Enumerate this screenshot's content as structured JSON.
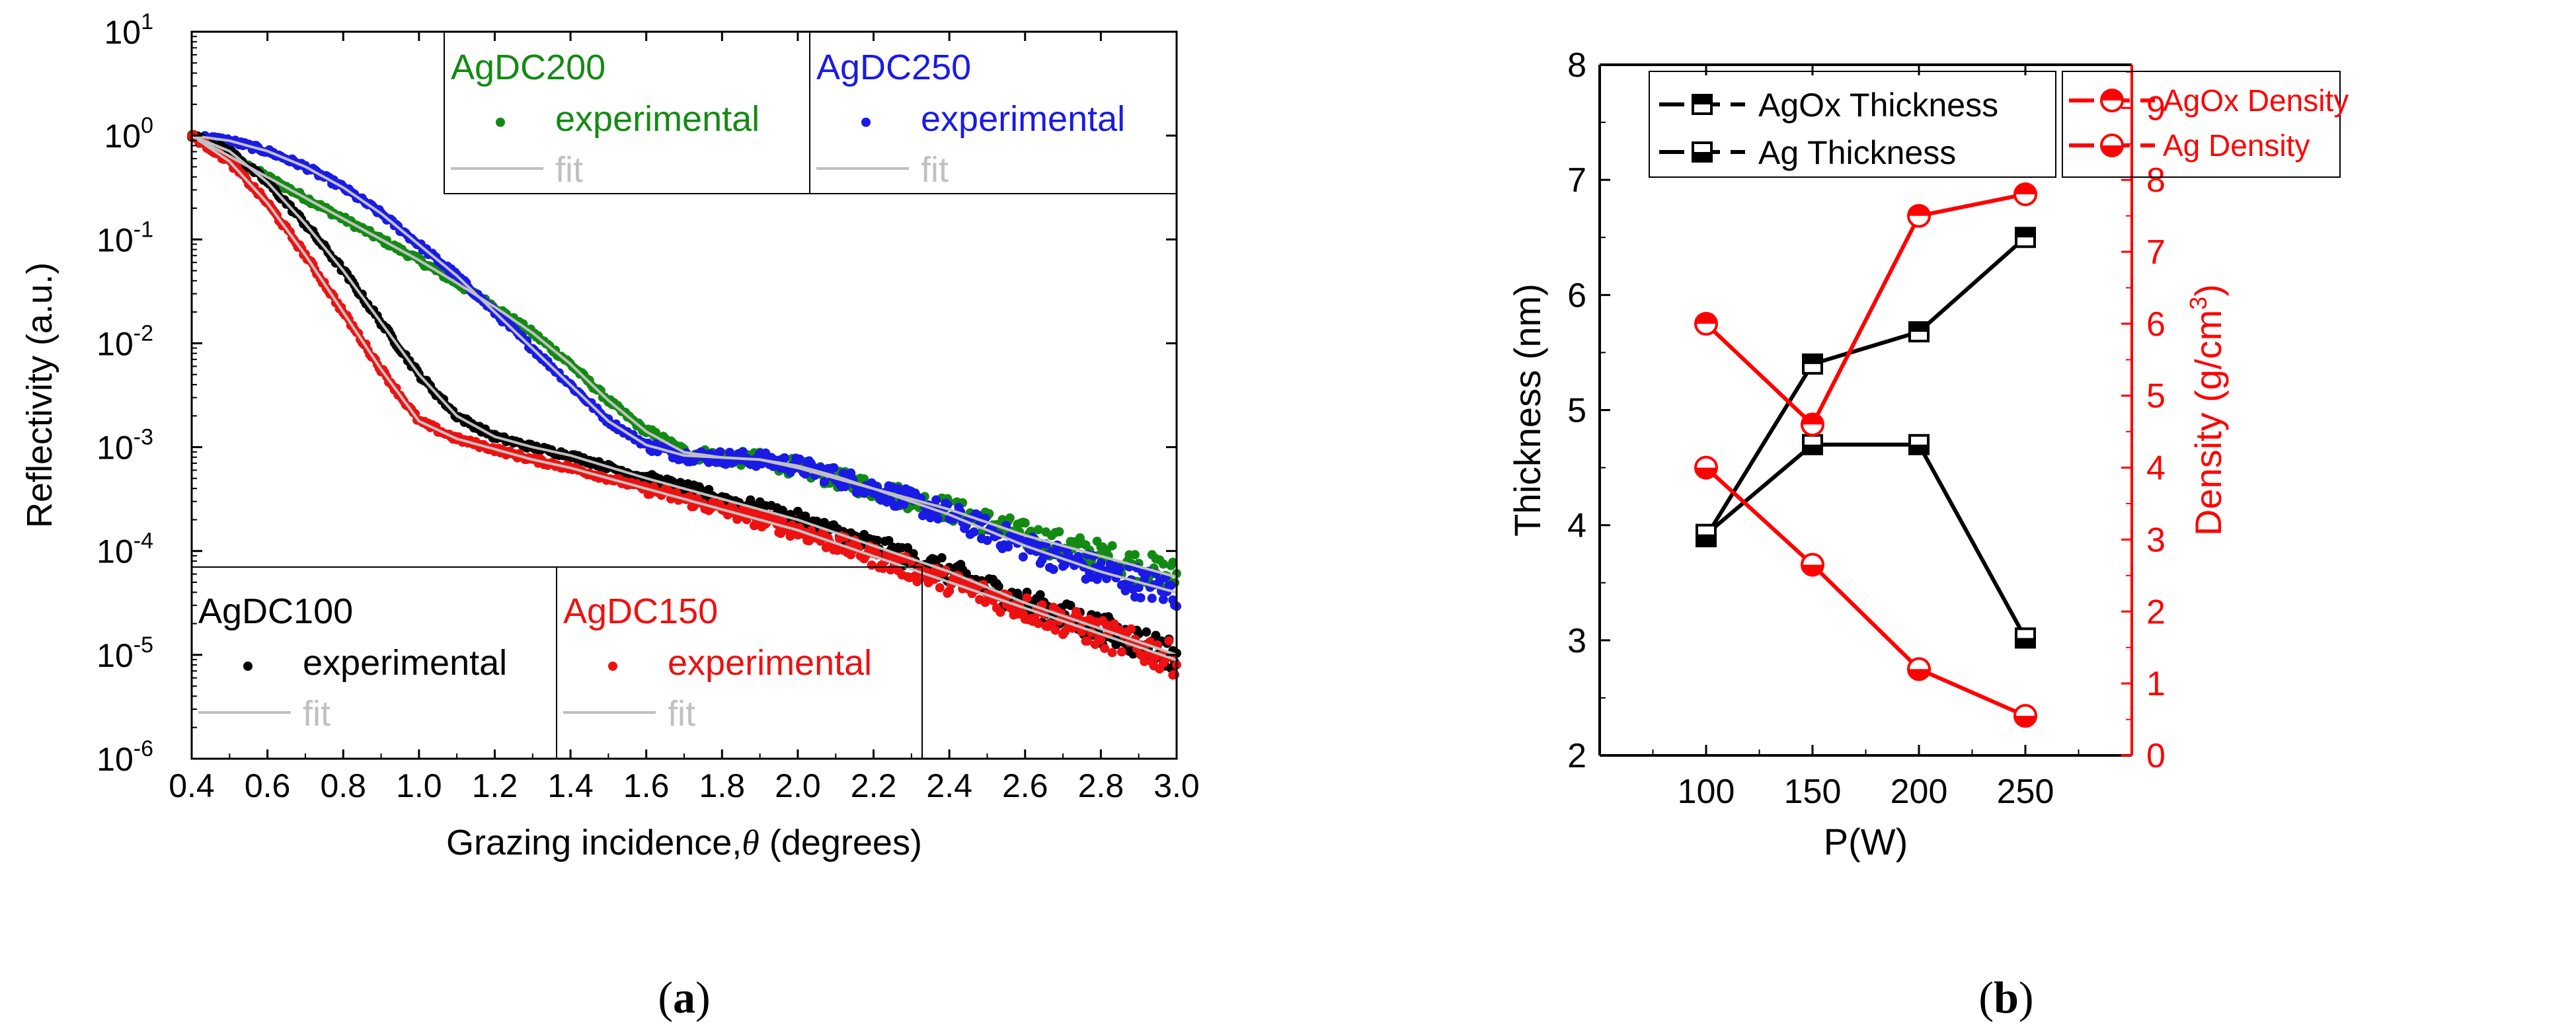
{
  "chart_data": [
    {
      "type": "scatter",
      "panel_label": "a",
      "xlabel_parts": [
        "Grazing incidence,",
        "θ",
        " (degrees)"
      ],
      "ylabel": "Reflectivity (a.u.)",
      "xlim": [
        0.4,
        3.0
      ],
      "ylim_log10": [
        -6,
        1
      ],
      "yscale": "log",
      "grid": false,
      "x_ticks": [
        "0.4",
        "0.6",
        "0.8",
        "1.0",
        "1.2",
        "1.4",
        "1.6",
        "1.8",
        "2.0",
        "2.2",
        "2.4",
        "2.6",
        "2.8",
        "3.0"
      ],
      "y_ticks": [
        {
          "base": "10",
          "exp": "1"
        },
        {
          "base": "10",
          "exp": "0"
        },
        {
          "base": "10",
          "exp": "-1"
        },
        {
          "base": "10",
          "exp": "-2"
        },
        {
          "base": "10",
          "exp": "-3"
        },
        {
          "base": "10",
          "exp": "-4"
        },
        {
          "base": "10",
          "exp": "-5"
        },
        {
          "base": "10",
          "exp": "-6"
        }
      ],
      "legends": [
        {
          "title": "AgDC200",
          "experimental": "experimental",
          "fit": "fit",
          "color": "#138a13",
          "placement": "top-center"
        },
        {
          "title": "AgDC250",
          "experimental": "experimental",
          "fit": "fit",
          "color": "#1a1ae6",
          "placement": "top-right"
        },
        {
          "title": "AgDC100",
          "experimental": "experimental",
          "fit": "fit",
          "color": "#000000",
          "placement": "bottom-left"
        },
        {
          "title": "AgDC150",
          "experimental": "experimental",
          "fit": "fit",
          "color": "#ee1111",
          "placement": "bottom-center"
        }
      ],
      "fit_color": "#c0c0c0",
      "series": [
        {
          "name": "AgDC100",
          "color": "#000000",
          "x": [
            0.4,
            0.5,
            0.6,
            0.7,
            0.8,
            0.9,
            1.0,
            1.1,
            1.2,
            1.3,
            1.4,
            1.6,
            1.8,
            2.0,
            2.2,
            2.4,
            2.6,
            2.8,
            3.0
          ],
          "log10y": [
            0.0,
            -0.15,
            -0.45,
            -0.85,
            -1.3,
            -1.8,
            -2.3,
            -2.7,
            -2.9,
            -3.0,
            -3.08,
            -3.3,
            -3.5,
            -3.7,
            -3.95,
            -4.2,
            -4.5,
            -4.75,
            -5.0
          ]
        },
        {
          "name": "AgDC150",
          "color": "#ee1111",
          "x": [
            0.4,
            0.5,
            0.6,
            0.7,
            0.8,
            0.9,
            1.0,
            1.1,
            1.2,
            1.3,
            1.4,
            1.6,
            1.8,
            2.0,
            2.2,
            2.4,
            2.6,
            2.8,
            3.0
          ],
          "log10y": [
            0.0,
            -0.25,
            -0.65,
            -1.15,
            -1.7,
            -2.25,
            -2.75,
            -2.92,
            -3.02,
            -3.12,
            -3.2,
            -3.4,
            -3.6,
            -3.8,
            -4.05,
            -4.3,
            -4.55,
            -4.8,
            -5.05
          ]
        },
        {
          "name": "AgDC200",
          "color": "#138a13",
          "x": [
            0.4,
            0.5,
            0.6,
            0.7,
            0.8,
            0.9,
            1.0,
            1.1,
            1.2,
            1.3,
            1.4,
            1.5,
            1.6,
            1.7,
            1.8,
            1.9,
            2.0,
            2.1,
            2.2,
            2.4,
            2.6,
            2.8,
            3.0
          ],
          "log10y": [
            0.0,
            -0.2,
            -0.4,
            -0.6,
            -0.8,
            -1.0,
            -1.2,
            -1.42,
            -1.65,
            -1.9,
            -2.2,
            -2.55,
            -2.85,
            -3.05,
            -3.1,
            -3.12,
            -3.2,
            -3.3,
            -3.4,
            -3.6,
            -3.85,
            -4.05,
            -4.25
          ]
        },
        {
          "name": "AgDC250",
          "color": "#1a1ae6",
          "x": [
            0.4,
            0.5,
            0.6,
            0.7,
            0.8,
            0.9,
            1.0,
            1.1,
            1.2,
            1.3,
            1.4,
            1.5,
            1.6,
            1.7,
            1.8,
            1.9,
            2.0,
            2.1,
            2.2,
            2.4,
            2.6,
            2.8,
            3.0
          ],
          "log10y": [
            0.0,
            -0.05,
            -0.15,
            -0.3,
            -0.5,
            -0.75,
            -1.05,
            -1.35,
            -1.7,
            -2.05,
            -2.4,
            -2.75,
            -2.98,
            -3.08,
            -3.1,
            -3.12,
            -3.18,
            -3.28,
            -3.4,
            -3.65,
            -3.95,
            -4.2,
            -4.4
          ]
        }
      ]
    },
    {
      "type": "line",
      "panel_label": "b",
      "xlabel": "P(W)",
      "ylabel": "Thickness (nm)",
      "ylabel_right_parts": [
        "Density (g/cm",
        "3",
        ")"
      ],
      "x_ticks": [
        "100",
        "150",
        "200",
        "250"
      ],
      "xlim": [
        50,
        300
      ],
      "ylim": [
        2,
        8
      ],
      "y_ticks": [
        "2",
        "3",
        "4",
        "5",
        "6",
        "7",
        "8"
      ],
      "ylim_right": [
        0,
        9.6
      ],
      "y_ticks_right": [
        "0",
        "1",
        "2",
        "3",
        "4",
        "5",
        "6",
        "7",
        "8",
        "9"
      ],
      "right_axis_color": "#ff0000",
      "grid": false,
      "legend_left": [
        "AgOx Thickness",
        "Ag Thickness"
      ],
      "legend_right": [
        "AgOx Density",
        "Ag Density"
      ],
      "series": [
        {
          "name": "AgOx Thickness",
          "axis": "left",
          "color": "#000000",
          "marker": "square-top-half",
          "x": [
            100,
            150,
            200,
            250
          ],
          "y": [
            3.9,
            5.4,
            5.68,
            6.5
          ]
        },
        {
          "name": "Ag Thickness",
          "axis": "left",
          "color": "#000000",
          "marker": "square-bottom-half",
          "x": [
            100,
            150,
            200,
            250
          ],
          "y": [
            3.92,
            4.7,
            4.7,
            3.02
          ]
        },
        {
          "name": "AgOx Density",
          "axis": "right",
          "color": "#ff0000",
          "marker": "circle-top-half",
          "x": [
            100,
            150,
            200,
            250
          ],
          "y": [
            6.0,
            4.6,
            7.5,
            7.8
          ]
        },
        {
          "name": "Ag Density",
          "axis": "right",
          "color": "#ff0000",
          "marker": "circle-bottom-half",
          "x": [
            100,
            150,
            200,
            250
          ],
          "y": [
            4.0,
            2.65,
            1.2,
            0.55
          ]
        }
      ]
    }
  ]
}
